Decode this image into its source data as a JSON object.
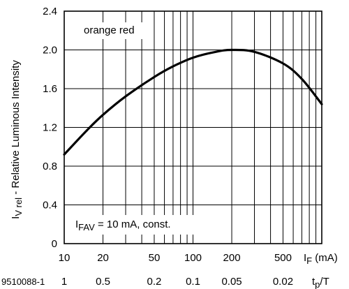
{
  "chart_data": {
    "type": "line",
    "series": [
      {
        "name": "orange red",
        "x": [
          10,
          15,
          20,
          30,
          50,
          70,
          100,
          150,
          200,
          300,
          500,
          700,
          1000
        ],
        "y": [
          0.92,
          1.17,
          1.33,
          1.52,
          1.72,
          1.83,
          1.92,
          1.98,
          2.0,
          1.98,
          1.86,
          1.7,
          1.44
        ]
      }
    ],
    "x_scale": "log",
    "xlim": [
      10,
      1000
    ],
    "ylim": [
      0,
      2.4
    ],
    "y_ticks": [
      "0",
      "0.4",
      "0.8",
      "1.2",
      "1.6",
      "2.0",
      "2.4"
    ],
    "x_ticks": [
      "10",
      "20",
      "50",
      "100",
      "200",
      "500"
    ],
    "x_tick_values": [
      10,
      20,
      50,
      100,
      200,
      500
    ],
    "x_unit_main": "I",
    "x_unit_sub": "F",
    "x_unit_suffix": " (mA)",
    "ylabel_main": "I",
    "ylabel_sub": "V rel",
    "ylabel_text": " - Relative Luminous Intensity",
    "secondary_x_ticks": [
      "1",
      "0.5",
      "0.2",
      "0.1",
      "0.05",
      "0.02"
    ],
    "secondary_x_label_main": "t",
    "secondary_x_label_sub": "p",
    "secondary_x_label_suffix": "/T",
    "figure_id": "9510088-1",
    "annotation_series": "orange red",
    "annotation_cond_main": "I",
    "annotation_cond_sub": "FAV",
    "annotation_cond_text": " = 10 mA, const.",
    "grid": true,
    "line_color": "#000000"
  }
}
